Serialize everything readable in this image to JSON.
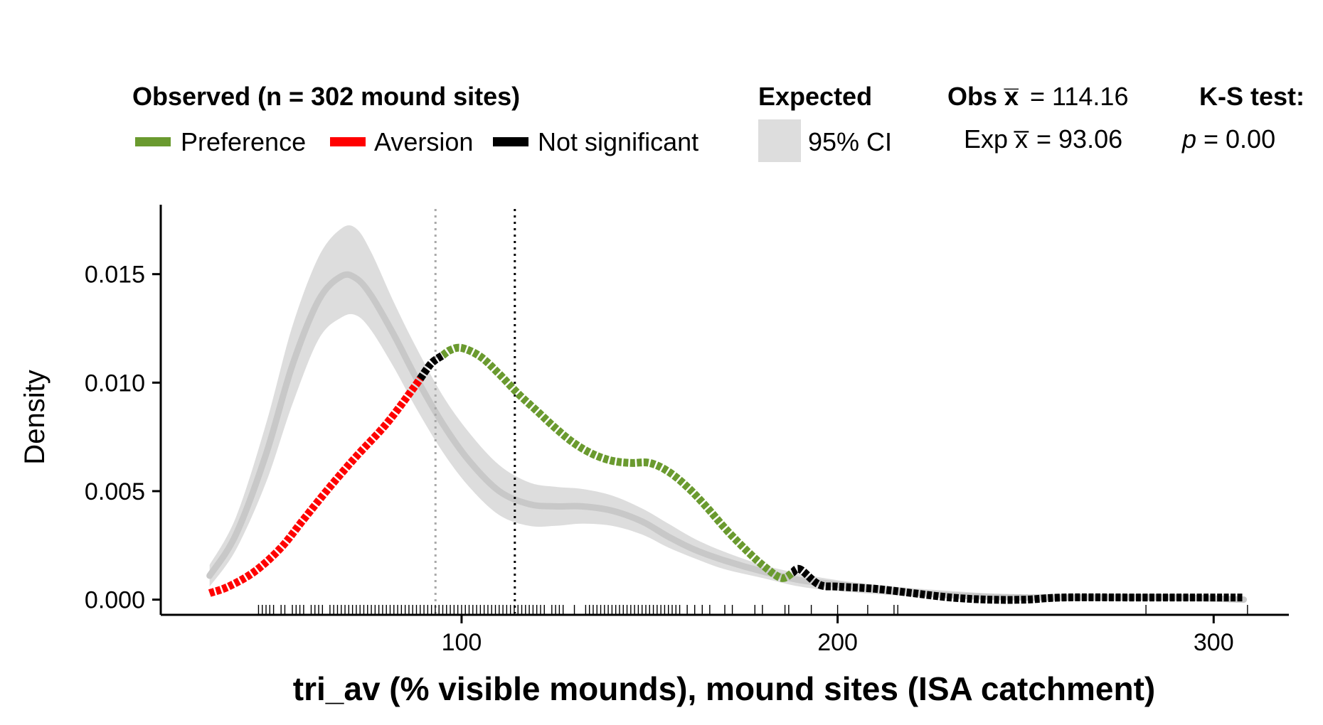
{
  "legend": {
    "observed_title": "Observed (n = 302 mound sites)",
    "preference_label": "Preference",
    "aversion_label": "Aversion",
    "notsig_label": "Not significant",
    "expected_title": "Expected",
    "ci_label": "95% CI",
    "obs_mean_label": "Obs x̅",
    "obs_mean_value": "= 114.16",
    "exp_mean_label": "Exp x̅",
    "exp_mean_value": "= 93.06",
    "ks_title": "K-S test:",
    "ks_p_label": "p",
    "ks_p_value": "= 0.00"
  },
  "colors": {
    "preference": "#6a9a2f",
    "aversion": "#ff0000",
    "notsig": "#000000",
    "expected_line": "#c8c8c8",
    "expected_ci": "#dddddd",
    "exp_mean_line": "#a9a9a9",
    "obs_mean_line": "#000000"
  },
  "chart_data": {
    "type": "line",
    "xlabel": "tri_av (% visible mounds), mound sites (ISA catchment)",
    "ylabel": "Density",
    "xlim": [
      20,
      320
    ],
    "ylim": [
      -0.0007,
      0.0182
    ],
    "x_ticks": [
      100,
      200,
      300
    ],
    "y_ticks": [
      0.0,
      0.005,
      0.01,
      0.015
    ],
    "y_tick_labels": [
      "0.000",
      "0.005",
      "0.010",
      "0.015"
    ],
    "obs_mean": 114.16,
    "exp_mean": 93.06,
    "observed": {
      "x": [
        33,
        38,
        45,
        52,
        58,
        65,
        72,
        80,
        87,
        92,
        97,
        100,
        105,
        110,
        115,
        120,
        125,
        130,
        135,
        140,
        145,
        150,
        155,
        160,
        165,
        170,
        175,
        180,
        185,
        190,
        195,
        200,
        210,
        220,
        230,
        240,
        250,
        260,
        280,
        300,
        308
      ],
      "y": [
        0.0003,
        0.0006,
        0.0013,
        0.0024,
        0.0037,
        0.0052,
        0.0066,
        0.0081,
        0.0097,
        0.0109,
        0.0115,
        0.0116,
        0.0112,
        0.0104,
        0.0095,
        0.0087,
        0.0079,
        0.0072,
        0.0067,
        0.0064,
        0.0063,
        0.0063,
        0.0059,
        0.0052,
        0.0043,
        0.0033,
        0.0024,
        0.0016,
        0.001,
        0.0014,
        0.0007,
        0.0006,
        0.0005,
        0.0003,
        0.0001,
        0.0,
        0.0,
        0.0001,
        0.0001,
        0.0001,
        0.0001
      ],
      "segments": [
        {
          "status": "aversion",
          "from": 33,
          "to": 89
        },
        {
          "status": "notsig",
          "from": 89,
          "to": 95
        },
        {
          "status": "preference",
          "from": 95,
          "to": 188
        },
        {
          "status": "notsig",
          "from": 188,
          "to": 308
        }
      ]
    },
    "expected": {
      "x": [
        33,
        40,
        48,
        55,
        62,
        68,
        72,
        76,
        82,
        88,
        95,
        102,
        110,
        118,
        125,
        132,
        140,
        148,
        155,
        162,
        170,
        180,
        190,
        200,
        215,
        230,
        250,
        270,
        290,
        308
      ],
      "y": [
        0.0011,
        0.003,
        0.0067,
        0.0108,
        0.0138,
        0.0149,
        0.0148,
        0.014,
        0.0122,
        0.0102,
        0.0081,
        0.0064,
        0.005,
        0.0044,
        0.0043,
        0.0043,
        0.0041,
        0.0036,
        0.0029,
        0.0023,
        0.0018,
        0.0013,
        0.0009,
        0.0007,
        0.0004,
        0.0002,
        0.0001,
        0.0001,
        0.0001,
        0.0
      ],
      "lower": [
        0.0006,
        0.0023,
        0.0054,
        0.009,
        0.012,
        0.013,
        0.0131,
        0.0124,
        0.0107,
        0.0088,
        0.0068,
        0.0052,
        0.0039,
        0.0034,
        0.0034,
        0.0035,
        0.0034,
        0.003,
        0.0024,
        0.0019,
        0.0014,
        0.001,
        0.0006,
        0.0004,
        0.0002,
        0.0001,
        0.0,
        0.0,
        0.0,
        0.0
      ],
      "upper": [
        0.0016,
        0.0038,
        0.0081,
        0.0126,
        0.0158,
        0.0171,
        0.0171,
        0.016,
        0.0137,
        0.0116,
        0.0094,
        0.0077,
        0.0062,
        0.0054,
        0.0052,
        0.0051,
        0.0048,
        0.0042,
        0.0035,
        0.0028,
        0.0022,
        0.0016,
        0.0012,
        0.0009,
        0.0006,
        0.0004,
        0.0002,
        0.0002,
        0.0002,
        0.0001
      ]
    },
    "rug": [
      46,
      47,
      48,
      49,
      50,
      52,
      53,
      55,
      56,
      57,
      58,
      60,
      61,
      62,
      63,
      65,
      66,
      67,
      68,
      69,
      70,
      71,
      72,
      73,
      74,
      75,
      76,
      77,
      78,
      79,
      80,
      81,
      82,
      83,
      84,
      85,
      86,
      87,
      88,
      89,
      90,
      91,
      92,
      93,
      94,
      95,
      96,
      97,
      98,
      99,
      100,
      101,
      102,
      103,
      104,
      105,
      106,
      107,
      108,
      109,
      110,
      111,
      112,
      113,
      114,
      115,
      116,
      117,
      118,
      119,
      120,
      121,
      122,
      124,
      125,
      126,
      127,
      130,
      133,
      134,
      135,
      136,
      137,
      138,
      139,
      140,
      141,
      142,
      143,
      144,
      145,
      146,
      147,
      148,
      149,
      150,
      151,
      152,
      153,
      154,
      155,
      156,
      157,
      158,
      160,
      162,
      164,
      166,
      170,
      172,
      178,
      180,
      186,
      187,
      193,
      200,
      208,
      215,
      216,
      282,
      309
    ]
  }
}
